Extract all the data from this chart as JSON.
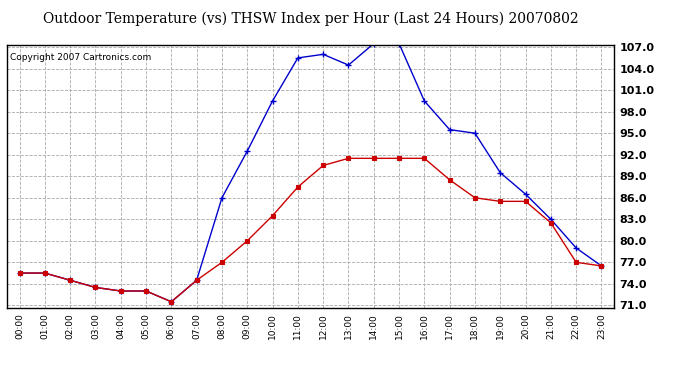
{
  "title": "Outdoor Temperature (vs) THSW Index per Hour (Last 24 Hours) 20070802",
  "copyright": "Copyright 2007 Cartronics.com",
  "hours": [
    "00:00",
    "01:00",
    "02:00",
    "03:00",
    "04:00",
    "05:00",
    "06:00",
    "07:00",
    "08:00",
    "09:00",
    "10:00",
    "11:00",
    "12:00",
    "13:00",
    "14:00",
    "15:00",
    "16:00",
    "17:00",
    "18:00",
    "19:00",
    "20:00",
    "21:00",
    "22:00",
    "23:00"
  ],
  "temp": [
    75.5,
    75.5,
    74.5,
    73.5,
    73.0,
    73.0,
    71.5,
    74.5,
    77.0,
    80.0,
    83.5,
    87.5,
    90.5,
    91.5,
    91.5,
    91.5,
    91.5,
    88.5,
    86.0,
    85.5,
    85.5,
    82.5,
    77.0,
    76.5
  ],
  "thsw": [
    75.5,
    75.5,
    74.5,
    73.5,
    73.0,
    73.0,
    71.5,
    74.5,
    86.0,
    92.5,
    99.5,
    105.5,
    106.0,
    104.5,
    107.5,
    107.5,
    99.5,
    95.5,
    95.0,
    89.5,
    86.5,
    83.0,
    79.0,
    76.5
  ],
  "temp_color": "#cc0000",
  "thsw_color": "#0000cc",
  "ylim_min": 71.0,
  "ylim_max": 107.0,
  "ytick_start": 71.0,
  "ytick_end": 107.0,
  "ytick_step": 3.0,
  "bg_color": "#ffffff",
  "grid_color": "#aaaaaa",
  "title_fontsize": 10,
  "copyright_fontsize": 6.5,
  "ytick_fontsize": 8,
  "xtick_fontsize": 6.5
}
